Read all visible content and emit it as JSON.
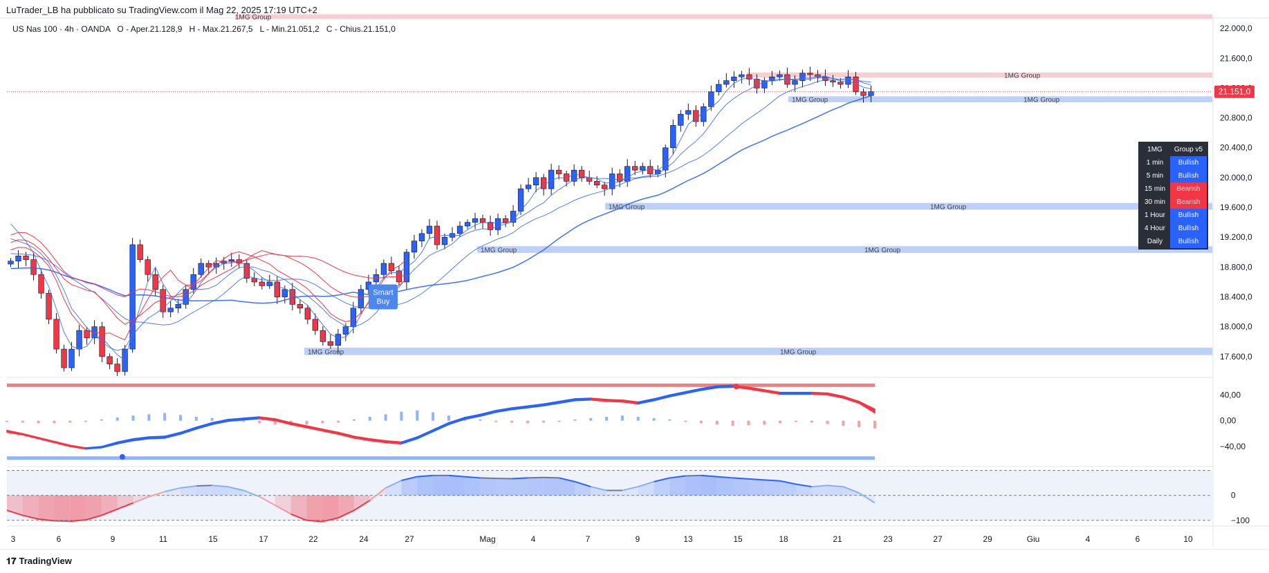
{
  "header": {
    "publisher_line": "LuTrader_LB ha pubblicato su TradingView.com il Mag 22, 2025 17:19 UTC+2",
    "symbol": "US Nas 100 · 4h · OANDA",
    "open_label": "O - Aper.",
    "open_value": "21.128,9",
    "high_label": "H - Max.",
    "high_value": "21.267,5",
    "low_label": "L - Min.",
    "low_value": "21.051,2",
    "close_label": "C - Chius.",
    "close_value": "21.151,0"
  },
  "footer": {
    "logo_text": "TradingView"
  },
  "colors": {
    "bull": "#2962ff",
    "bear": "#f23645",
    "zone_blue": "#b2c8f8",
    "zone_red": "#f7c5c9"
  },
  "chart_data": [
    {
      "type": "candlestick",
      "title": "",
      "y_axis": {
        "ticks": [
          17600,
          18000,
          18400,
          18800,
          19200,
          19600,
          20000,
          20400,
          20800,
          21200,
          21600,
          22000
        ],
        "tick_labels": [
          "17.600,0",
          "18.000,0",
          "18.400,0",
          "18.800,0",
          "19.200,0",
          "19.600,0",
          "20.000,0",
          "20.400,0",
          "20.800,0",
          "21.200,0",
          "21.600,0",
          "22.000,0"
        ],
        "range": [
          17330,
          22140
        ]
      },
      "x_axis": {
        "tick_labels": [
          "3",
          "6",
          "9",
          "11",
          "15",
          "17",
          "22",
          "24",
          "27",
          "Mag",
          "4",
          "7",
          "9",
          "13",
          "15",
          "18",
          "21",
          "23",
          "27",
          "29",
          "Giu",
          "4",
          "6",
          "10"
        ]
      },
      "last_price": 21151.0,
      "last_price_label": "21.151,0",
      "zones": [
        {
          "label": "1MG Group",
          "color": "red",
          "low": 22130,
          "high": 22190
        },
        {
          "label": "1MG Group",
          "color": "red",
          "low": 21340,
          "high": 21410
        },
        {
          "label": "1MG Group",
          "color": "blue",
          "low": 21010,
          "high": 21090
        },
        {
          "label": "1MG Group",
          "color": "blue",
          "low": 19570,
          "high": 19660
        },
        {
          "label": "1MG Group",
          "color": "blue",
          "low": 18990,
          "high": 19080
        },
        {
          "label": "1MG Group",
          "color": "blue",
          "low": 17620,
          "high": 17720
        }
      ],
      "signals": [
        {
          "text": "Smart Buy"
        }
      ],
      "candles_approx_closes": [
        18880,
        18950,
        18900,
        18700,
        18450,
        18100,
        17700,
        17450,
        17700,
        17950,
        17850,
        18000,
        17600,
        17500,
        17400,
        17700,
        19100,
        18900,
        18700,
        18500,
        18200,
        18250,
        18300,
        18500,
        18700,
        18850,
        18800,
        18850,
        18880,
        18900,
        18850,
        18650,
        18600,
        18550,
        18600,
        18400,
        18500,
        18300,
        18250,
        18100,
        17950,
        17800,
        17750,
        17900,
        18000,
        18250,
        18500,
        18600,
        18700,
        18850,
        18750,
        18600,
        19000,
        19150,
        19250,
        19350,
        19100,
        19200,
        19250,
        19350,
        19400,
        19450,
        19400,
        19300,
        19450,
        19400,
        19550,
        19850,
        19900,
        20000,
        19850,
        20100,
        20050,
        19950,
        20100,
        20000,
        19950,
        19900,
        19850,
        20050,
        19950,
        20150,
        20100,
        20150,
        20050,
        20100,
        20400,
        20700,
        20850,
        20900,
        20750,
        20950,
        21150,
        21250,
        21300,
        21350,
        21380,
        21320,
        21200,
        21300,
        21350,
        21380,
        21250,
        21300,
        21400,
        21380,
        21350,
        21300,
        21280,
        21250,
        21350,
        21150,
        21100,
        21151
      ]
    },
    {
      "type": "area",
      "title": "",
      "y_axis": {
        "ticks": [
          40,
          0,
          -40
        ],
        "tick_labels": [
          "40,00",
          "0,00",
          "−40,00"
        ],
        "range": [
          -70,
          65
        ]
      },
      "upper_level": 55,
      "lower_level": -58,
      "series": [
        {
          "values": [
            -15,
            -20,
            -26,
            -32,
            -38,
            -42,
            -40,
            -33,
            -28,
            -25,
            -24,
            -18,
            -10,
            -3,
            2,
            4,
            6,
            3,
            -3,
            -8,
            -13,
            -18,
            -24,
            -28,
            -31,
            -33,
            -25,
            -14,
            -3,
            5,
            10,
            16,
            20,
            23,
            26,
            30,
            34,
            35,
            33,
            32,
            29,
            34,
            40,
            45,
            50,
            54,
            55,
            52,
            48,
            44,
            44,
            44,
            43,
            38,
            30,
            18
          ]
        },
        {
          "values": [
            -18,
            -22,
            -28,
            -34,
            -40,
            -44,
            -42,
            -36,
            -31,
            -28,
            -27,
            -21,
            -13,
            -6,
            -1,
            1,
            3,
            0,
            -6,
            -11,
            -16,
            -21,
            -27,
            -31,
            -34,
            -36,
            -28,
            -17,
            -6,
            2,
            7,
            13,
            17,
            20,
            23,
            27,
            31,
            32,
            30,
            29,
            26,
            31,
            37,
            42,
            47,
            51,
            52,
            49,
            45,
            41,
            41,
            41,
            40,
            35,
            27,
            12
          ]
        }
      ],
      "histogram": [
        -2,
        -3,
        -4,
        -4,
        -3,
        -2,
        2,
        5,
        8,
        10,
        12,
        9,
        6,
        4,
        2,
        -2,
        -4,
        -6,
        -7,
        -6,
        -4,
        -3,
        2,
        6,
        10,
        14,
        16,
        13,
        8,
        4,
        2,
        -2,
        -3,
        -4,
        -3,
        -2,
        2,
        4,
        6,
        8,
        6,
        4,
        2,
        -2,
        -4,
        -6,
        -8,
        -7,
        -6,
        -4,
        -2,
        -3,
        -5,
        -8,
        -10,
        -12
      ]
    },
    {
      "type": "line",
      "title": "",
      "y_axis": {
        "ticks": [
          0,
          -100
        ],
        "tick_labels": [
          "0",
          "−100"
        ],
        "range": [
          -120,
          110
        ]
      },
      "levels": [
        100,
        0,
        -100
      ],
      "series": [
        {
          "values": [
            -60,
            -80,
            -95,
            -102,
            -104,
            -98,
            -80,
            -55,
            -30,
            -5,
            15,
            30,
            38,
            40,
            35,
            20,
            -5,
            -40,
            -75,
            -100,
            -105,
            -90,
            -60,
            -20,
            30,
            60,
            75,
            80,
            80,
            75,
            70,
            68,
            67,
            70,
            72,
            70,
            55,
            35,
            20,
            20,
            35,
            55,
            70,
            78,
            80,
            75,
            70,
            66,
            62,
            58,
            45,
            35,
            40,
            35,
            10,
            -30
          ]
        }
      ]
    }
  ]
}
